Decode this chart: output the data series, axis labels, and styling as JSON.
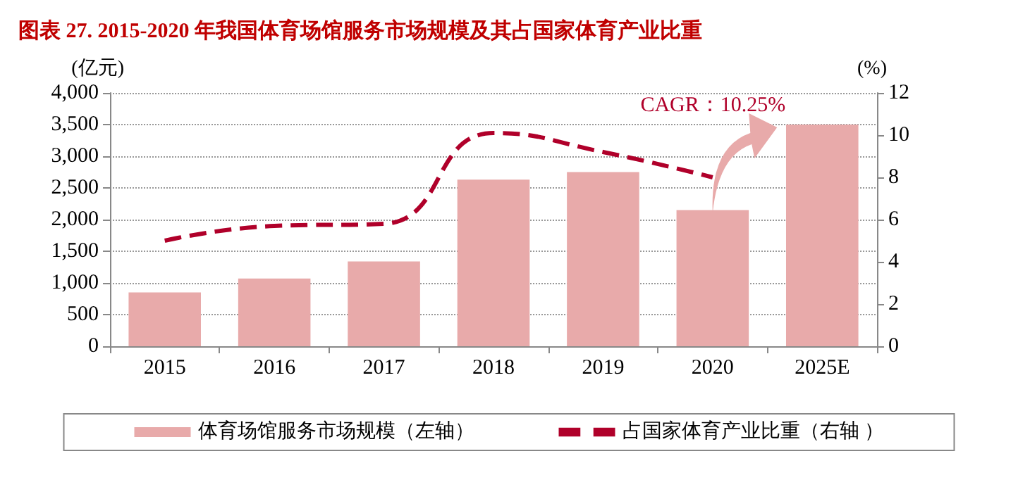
{
  "chart_data": {
    "type": "bar",
    "title": "图表 27. 2015-2020 年我国体育场馆服务市场规模及其占国家体育产业比重",
    "categories": [
      "2015",
      "2016",
      "2017",
      "2018",
      "2019",
      "2020",
      "2025E"
    ],
    "series": [
      {
        "name": "体育场馆服务市场规模（左轴）",
        "color": "#e8aaaa",
        "values": [
          850,
          1070,
          1340,
          2630,
          2750,
          2150,
          3500
        ]
      },
      {
        "name": "占国家体育产业比重（右轴 ）",
        "type": "line",
        "axis": "y2",
        "color": "#b0002a",
        "line_style": "dashed",
        "marker": "none",
        "values": [
          5.0,
          5.7,
          5.8,
          10.1,
          9.2,
          8.0,
          null
        ]
      }
    ],
    "ylabel": "(亿元)",
    "y2label": "(%)",
    "ylim": [
      0,
      4000
    ],
    "yticks": [
      0,
      {
        "value": 500,
        "label": "500"
      },
      {
        "value": 1000,
        "label": "1,000"
      },
      {
        "value": 1500,
        "label": "1,500"
      },
      {
        "value": 2000,
        "label": "2,000"
      },
      {
        "value": 2500,
        "label": "2,500"
      },
      {
        "value": 3000,
        "label": "3,000"
      },
      {
        "value": 3500,
        "label": "3,500"
      },
      {
        "value": 4000,
        "label": "4,000"
      }
    ],
    "y2lim": [
      0,
      12
    ],
    "y2ticks": [
      0,
      2,
      4,
      6,
      8,
      10,
      12
    ],
    "annotations": [
      {
        "text": "CAGR：10.25%",
        "x": "2025E",
        "y": 3500
      }
    ],
    "grid": "y",
    "legend": "bottom"
  }
}
